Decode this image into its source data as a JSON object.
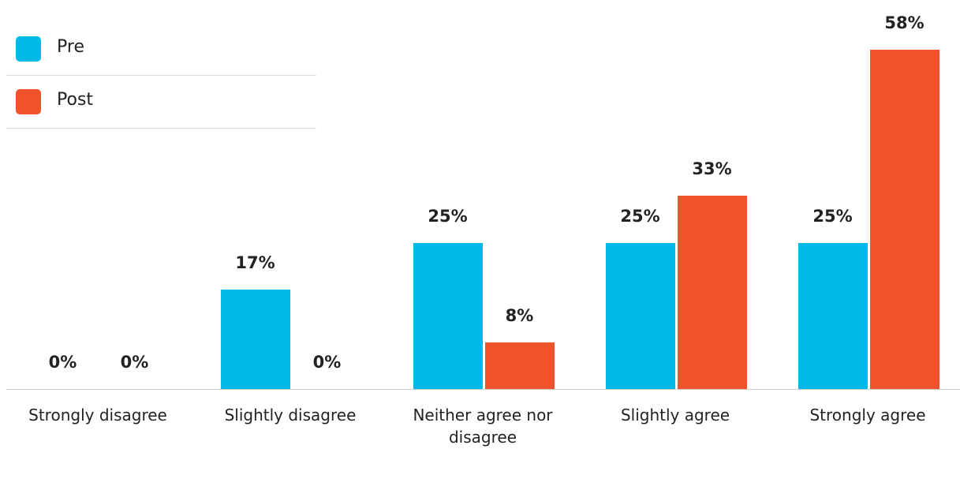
{
  "chart_data": {
    "type": "bar",
    "categories": [
      "Strongly disagree",
      "Slightly disagree",
      "Neither agree nor disagree",
      "Slightly agree",
      "Strongly agree"
    ],
    "series": [
      {
        "name": "Pre",
        "color": "#00b9e8",
        "values": [
          0,
          17,
          25,
          25,
          25
        ],
        "value_labels": [
          "0%",
          "17%",
          "25%",
          "25%",
          "25%"
        ]
      },
      {
        "name": "Post",
        "color": "#f0522a",
        "values": [
          0,
          0,
          8,
          33,
          58
        ],
        "value_labels": [
          "0%",
          "0%",
          "8%",
          "33%",
          "58%"
        ]
      }
    ],
    "ylim": [
      0,
      60
    ],
    "legend": "top-left"
  }
}
